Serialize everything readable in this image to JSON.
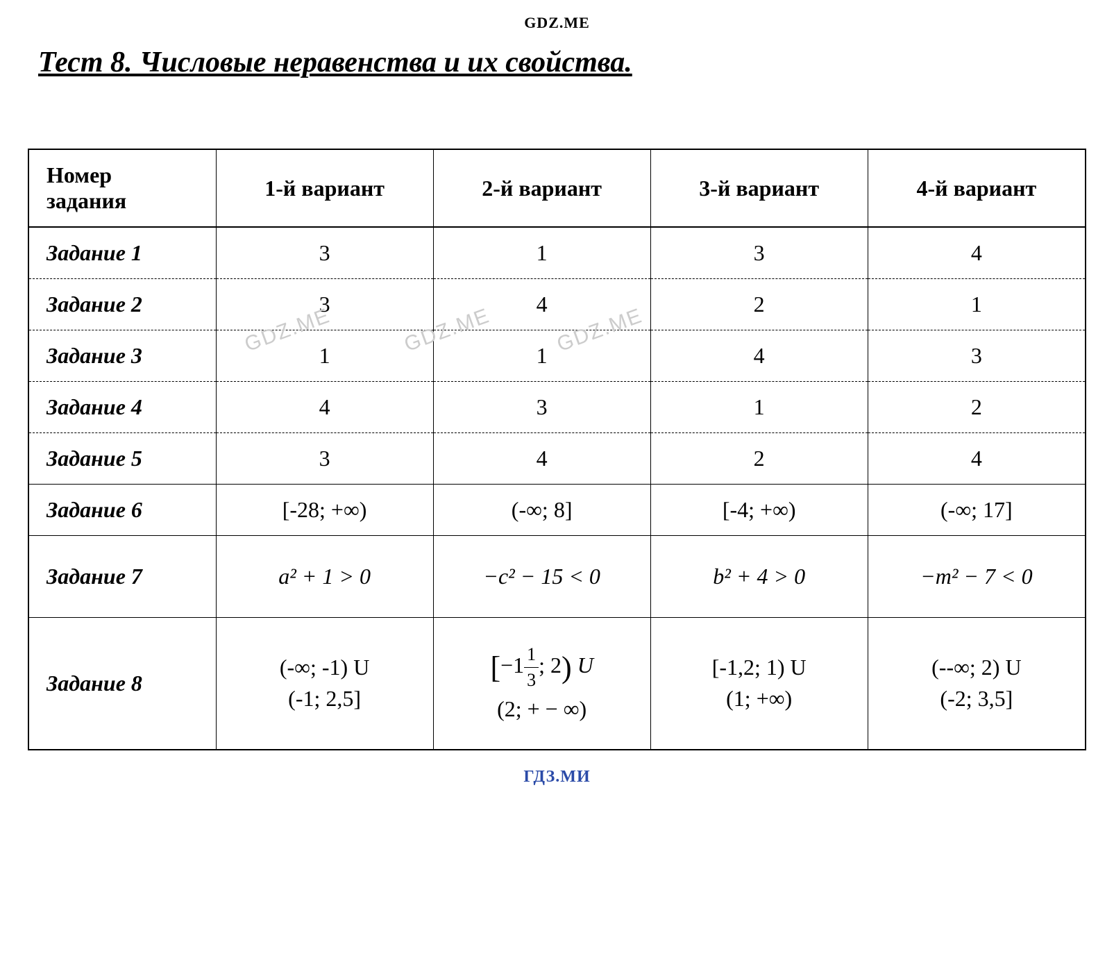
{
  "watermark_top": "GDZ.ME",
  "watermark_bottom": "ГДЗ.МИ",
  "watermark_inline": "GDZ.ME",
  "title": "Тест 8. Числовые неравенства и их свойства.",
  "table": {
    "header_col1_line1": "Номер",
    "header_col1_line2": "задания",
    "header_variants": [
      "1-й вариант",
      "2-й вариант",
      "3-й вариант",
      "4-й вариант"
    ],
    "rows": [
      {
        "label": "Задание 1",
        "cells": [
          "3",
          "1",
          "3",
          "4"
        ]
      },
      {
        "label": "Задание 2",
        "cells": [
          "3",
          "4",
          "2",
          "1"
        ]
      },
      {
        "label": "Задание 3",
        "cells": [
          "1",
          "1",
          "4",
          "3"
        ]
      },
      {
        "label": "Задание 4",
        "cells": [
          "4",
          "3",
          "1",
          "2"
        ]
      },
      {
        "label": "Задание 5",
        "cells": [
          "3",
          "4",
          "2",
          "4"
        ]
      },
      {
        "label": "Задание 6",
        "cells": [
          "[-28; +∞)",
          "(-∞; 8]",
          "[-4; +∞)",
          "(-∞; 17]"
        ]
      },
      {
        "label": "Задание 7",
        "cells": [
          "a² + 1 > 0",
          "−c² − 15 < 0",
          "b² + 4 > 0",
          "−m² − 7 < 0"
        ]
      },
      {
        "label": "Задание 8",
        "cells": [
          "(-∞; -1) U\n(-1; 2,5]",
          "[−1⅓; 2) U\n(2; + − ∞)",
          "[-1,2; 1) U\n(1; +∞)",
          "(--∞; 2) U\n(-2; 3,5]"
        ]
      }
    ]
  },
  "styling": {
    "body_bg": "#ffffff",
    "text_color": "#000000",
    "watermark_bottom_color": "#2b4ba8",
    "watermark_inline_color": "#cccccc",
    "title_fontsize": 42,
    "cell_fontsize": 32,
    "font_family": "Times New Roman",
    "border_color": "#000000"
  }
}
